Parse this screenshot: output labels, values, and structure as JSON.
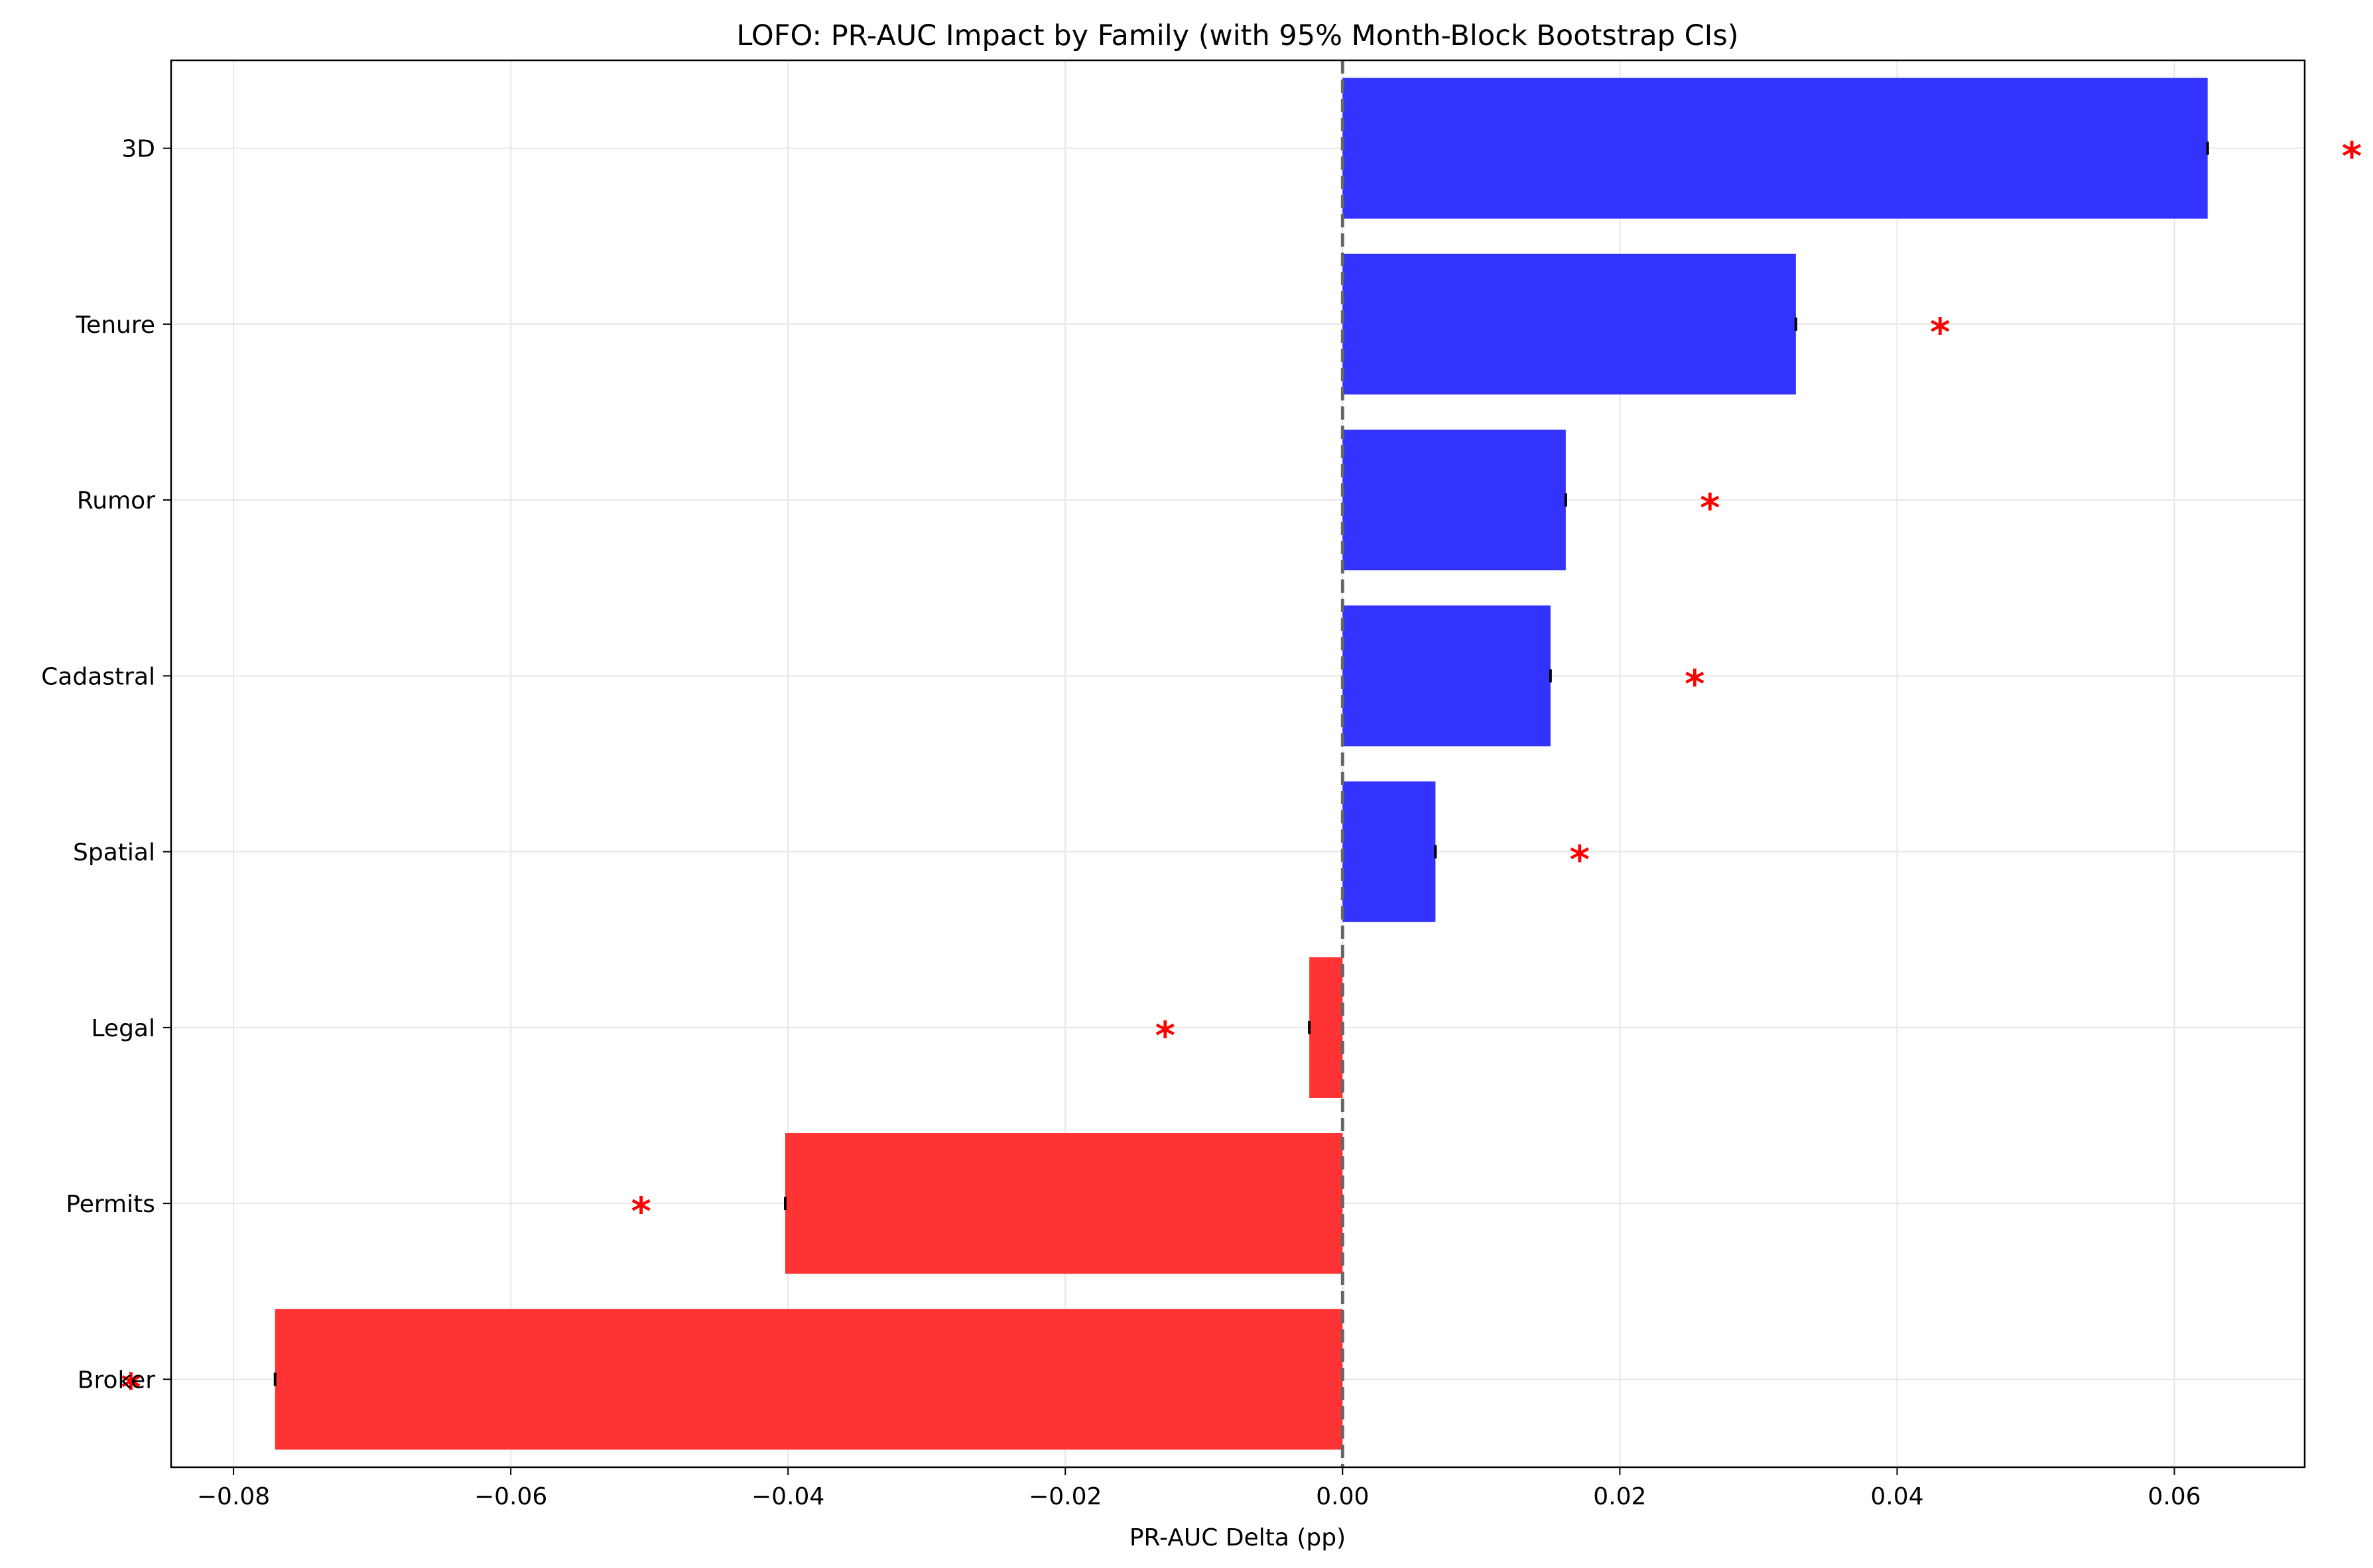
{
  "chart_data": {
    "type": "bar",
    "orientation": "horizontal",
    "title": "LOFO: PR-AUC Impact by Family (with 95% Month-Block Bootstrap CIs)",
    "xlabel": "PR-AUC Delta (pp)",
    "ylabel": "",
    "xlim": [
      -0.0845,
      0.0694
    ],
    "x_ticks": [
      -0.08,
      -0.06,
      -0.04,
      -0.02,
      0.0,
      0.02,
      0.04,
      0.06
    ],
    "x_tick_labels": [
      "−0.08",
      "−0.06",
      "−0.04",
      "−0.02",
      "0.00",
      "0.02",
      "0.04",
      "0.06"
    ],
    "categories": [
      "3D",
      "Tenure",
      "Rumor",
      "Cadastral",
      "Spatial",
      "Legal",
      "Permits",
      "Broker"
    ],
    "values": [
      0.0624,
      0.0327,
      0.0161,
      0.015,
      0.0067,
      -0.0024,
      -0.0402,
      -0.077
    ],
    "significance_marker": "*",
    "significant": [
      true,
      true,
      true,
      true,
      true,
      true,
      true,
      true
    ],
    "colors": {
      "positive": "#3333ff",
      "negative": "#ff3333",
      "star": "#ff0000",
      "zero_line": "#666666",
      "grid": "#e6e6e6"
    },
    "grid": true,
    "zero_reference_line": "dashed"
  }
}
